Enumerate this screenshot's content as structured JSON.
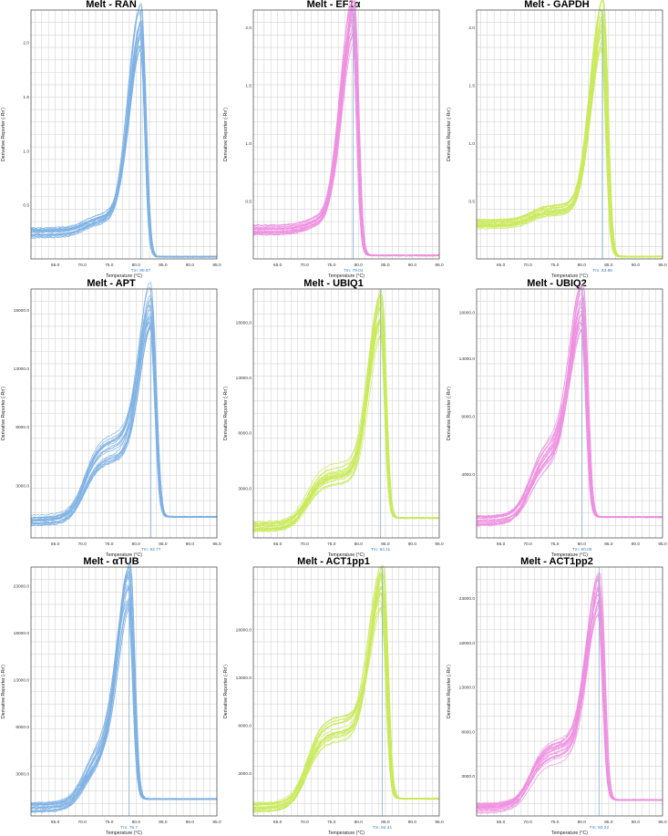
{
  "chart_data": [
    {
      "type": "line",
      "title": "Melt - RAN",
      "color": "#7eb2e4",
      "tm_label": "Tm: 80.87",
      "tm_x": 80.87,
      "peak_y": 2.17,
      "base_y": 0.24,
      "shoulder_y": 0.38,
      "end_y": 0.02,
      "xlabel": "Temperature (°C)",
      "ylabel": "Derivative Reporter (-Rn')",
      "xlim": [
        60.5,
        95.0
      ],
      "ylim": [
        0,
        2.3
      ],
      "xticks": [
        "65.0",
        "70.0",
        "75.0",
        "80.0",
        "85.0",
        "90.0",
        "95.0"
      ],
      "yticks": [
        {
          "v": 0.5,
          "label": "0.5"
        },
        {
          "v": 1.0,
          "label": "1.0"
        },
        {
          "v": 1.5,
          "label": "1.5"
        },
        {
          "v": 2.0,
          "label": "2.0"
        }
      ]
    },
    {
      "type": "line",
      "title": "Melt - EF1α",
      "color": "#ee8fe0",
      "tm_label": "Tm: 79.04",
      "tm_x": 79.04,
      "peak_y": 2.07,
      "base_y": 0.25,
      "shoulder_y": 0.34,
      "end_y": 0.03,
      "xlabel": "Temperature (°C)",
      "ylabel": "Derivative Reporter (-Rn')",
      "xlim": [
        60.5,
        95.0
      ],
      "ylim": [
        0,
        2.15
      ],
      "xticks": [
        "65.0",
        "70.0",
        "75.0",
        "80.0",
        "85.0",
        "90.0",
        "95.0"
      ],
      "yticks": [
        {
          "v": 0.5,
          "label": "0.5"
        },
        {
          "v": 1.0,
          "label": "1.0"
        },
        {
          "v": 1.5,
          "label": "1.5"
        },
        {
          "v": 2.0,
          "label": "2.0"
        }
      ]
    },
    {
      "type": "line",
      "title": "Melt - GAPDH",
      "color": "#c9ea5a",
      "tm_label": "Tm: 83.86",
      "tm_x": 83.86,
      "peak_y": 2.05,
      "base_y": 0.3,
      "shoulder_y": 0.42,
      "end_y": 0.02,
      "xlabel": "Temperature (°C)",
      "ylabel": "Derivative Reporter (-Rn')",
      "xlim": [
        60.5,
        95.0
      ],
      "ylim": [
        0,
        2.15
      ],
      "xticks": [
        "65.0",
        "70.0",
        "75.0",
        "80.0",
        "85.0",
        "90.0",
        "95.0"
      ],
      "yticks": [
        {
          "v": 0.5,
          "label": "0.5"
        },
        {
          "v": 1.0,
          "label": "1.0"
        },
        {
          "v": 1.5,
          "label": "1.5"
        },
        {
          "v": 2.0,
          "label": "2.0"
        }
      ]
    },
    {
      "type": "line",
      "title": "Melt - APT",
      "color": "#7eb2e4",
      "tm_label": "Tm: 82.77",
      "tm_x": 82.77,
      "peak_y": 18500,
      "base_y": 0,
      "shoulder_y": 6200,
      "end_y": 300,
      "xlabel": "Temperature (°C)",
      "ylabel": "Derivative Reporter (-Rn')",
      "xlim": [
        60.5,
        95.0
      ],
      "ylim": [
        -1500,
        19800
      ],
      "xticks": [
        "65.0",
        "70.0",
        "75.0",
        "80.0",
        "85.0",
        "90.0",
        "95.0"
      ],
      "yticks": [
        {
          "v": 3000,
          "label": "3000.0"
        },
        {
          "v": 8000,
          "label": "8000.0"
        },
        {
          "v": 13000,
          "label": "13000.0"
        },
        {
          "v": 18000,
          "label": "18000.0"
        }
      ]
    },
    {
      "type": "line",
      "title": "Melt - UBIQ1",
      "color": "#c9ea5a",
      "tm_label": "Tm: 84.11",
      "tm_x": 84.11,
      "peak_y": 18900,
      "base_y": -500,
      "shoulder_y": 4200,
      "end_y": 300,
      "xlabel": "Temperature (°C)",
      "ylabel": "Derivative Reporter (-Rn')",
      "xlim": [
        60.5,
        95.0
      ],
      "ylim": [
        -1500,
        21000
      ],
      "xticks": [
        "65.0",
        "70.0",
        "75.0",
        "80.0",
        "85.0",
        "90.0",
        "95.0"
      ],
      "yticks": [
        {
          "v": 3000,
          "label": "3000.0"
        },
        {
          "v": 8000,
          "label": "8000.0"
        },
        {
          "v": 13000,
          "label": "13000.0"
        },
        {
          "v": 18000,
          "label": "18000.0"
        }
      ]
    },
    {
      "type": "line",
      "title": "Melt - UBIQ2",
      "color": "#ee8fe0",
      "tm_label": "Tm: 80.06",
      "tm_x": 80.06,
      "peak_y": 18600,
      "base_y": 0,
      "shoulder_y": 6000,
      "end_y": 300,
      "xlabel": "Temperature (°C)",
      "ylabel": "Derivative Reporter (-Rn')",
      "xlim": [
        60.5,
        95.0
      ],
      "ylim": [
        -1500,
        20000
      ],
      "xticks": [
        "65.0",
        "70.0",
        "75.0",
        "80.0",
        "85.0",
        "90.0",
        "95.0"
      ],
      "yticks": [
        {
          "v": 4000,
          "label": "4000.0"
        },
        {
          "v": 9000,
          "label": "9000.0"
        },
        {
          "v": 14000,
          "label": "14000.0"
        },
        {
          "v": 18000,
          "label": "18000.0"
        }
      ]
    },
    {
      "type": "line",
      "title": "Melt - αTUB",
      "color": "#7eb2e4",
      "tm_label": "Tm: 78.7",
      "tm_x": 78.7,
      "peak_y": 23000,
      "base_y": -600,
      "shoulder_y": 5400,
      "end_y": 300,
      "xlabel": "Temperature (°C)",
      "ylabel": "Derivative Reporter (-Rn')",
      "xlim": [
        60.5,
        95.0
      ],
      "ylim": [
        -1500,
        25000
      ],
      "xticks": [
        "65.0",
        "70.0",
        "75.0",
        "80.0",
        "85.0",
        "90.0",
        "95.0"
      ],
      "yticks": [
        {
          "v": 3000,
          "label": "3000.0"
        },
        {
          "v": 8000,
          "label": "8000.0"
        },
        {
          "v": 13000,
          "label": "13000.0"
        },
        {
          "v": 18000,
          "label": "18000.0"
        },
        {
          "v": 23000,
          "label": "23000.0"
        }
      ]
    },
    {
      "type": "line",
      "title": "Melt - ACT1pp1",
      "color": "#c9ea5a",
      "tm_label": "Tm: 84.41",
      "tm_x": 84.41,
      "peak_y": 22500,
      "base_y": -500,
      "shoulder_y": 7500,
      "end_y": 300,
      "xlabel": "Temperature (°C)",
      "ylabel": "Derivative Reporter (-Rn')",
      "xlim": [
        60.5,
        95.0
      ],
      "ylim": [
        -1500,
        24500
      ],
      "xticks": [
        "65.0",
        "70.0",
        "75.0",
        "80.0",
        "85.0",
        "90.0",
        "95.0"
      ],
      "yticks": [
        {
          "v": 3000,
          "label": "3000.0"
        },
        {
          "v": 8000,
          "label": "8000.0"
        },
        {
          "v": 13000,
          "label": "13000.0"
        },
        {
          "v": 18000,
          "label": "18000.0"
        }
      ]
    },
    {
      "type": "line",
      "title": "Melt - ACT1pp2",
      "color": "#ee8fe0",
      "tm_label": "Tm: 83.22",
      "tm_x": 83.22,
      "peak_y": 23500,
      "base_y": -600,
      "shoulder_y": 6000,
      "end_y": 300,
      "xlabel": "Temperature (°C)",
      "ylabel": "Derivative Reporter (-Rn')",
      "xlim": [
        60.5,
        95.0
      ],
      "ylim": [
        -1500,
        26500
      ],
      "xticks": [
        "65.0",
        "70.0",
        "75.0",
        "80.0",
        "85.0",
        "90.0",
        "95.0"
      ],
      "yticks": [
        {
          "v": 3000,
          "label": "3000.0"
        },
        {
          "v": 8000,
          "label": "8000.0"
        },
        {
          "v": 13000,
          "label": "13000.0"
        },
        {
          "v": 18000,
          "label": "18000.0"
        },
        {
          "v": 23000,
          "label": "23000.0"
        }
      ]
    }
  ]
}
